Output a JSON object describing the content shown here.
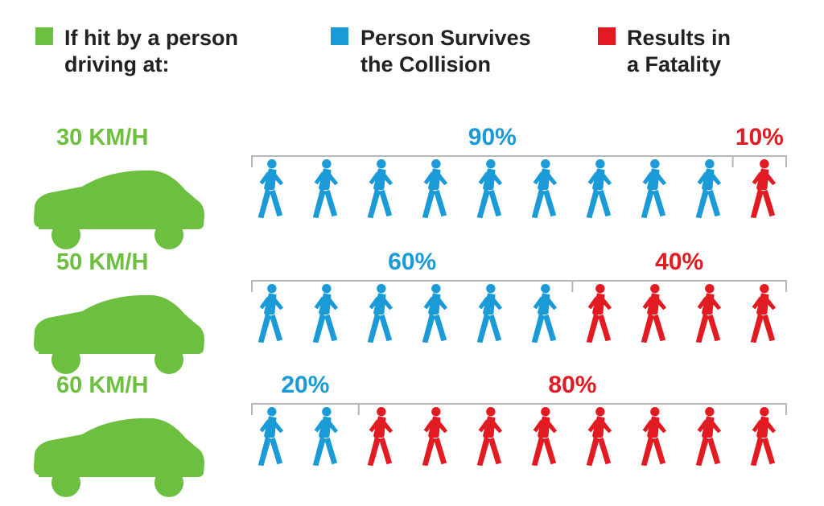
{
  "colors": {
    "speed": "#6cbf3f",
    "survive": "#1a9ad6",
    "fatal": "#e21b23",
    "text": "#222222",
    "bracket": "#b7b7b7"
  },
  "legend": [
    {
      "key": "speed",
      "lines": [
        "If hit by a person",
        "driving at:"
      ]
    },
    {
      "key": "survive",
      "lines": [
        "Person Survives",
        "the Collision"
      ]
    },
    {
      "key": "fatal",
      "lines": [
        "Results in",
        "a Fatality"
      ]
    }
  ],
  "icons": {
    "car": "car-icon",
    "pedestrian": "pedestrian-walking-icon"
  },
  "chart_data": {
    "type": "bar",
    "categories": [
      "30 KM/H",
      "50 KM/H",
      "60 KM/H"
    ],
    "series": [
      {
        "name": "Person Survives the Collision",
        "values": [
          90,
          60,
          20
        ]
      },
      {
        "name": "Results in a Fatality",
        "values": [
          10,
          40,
          80
        ]
      }
    ],
    "labels": [
      [
        "90%",
        "10%"
      ],
      [
        "60%",
        "40%"
      ],
      [
        "20%",
        "80%"
      ]
    ],
    "icons_per_row": 10,
    "unit": "%",
    "ylim": [
      0,
      100
    ]
  }
}
